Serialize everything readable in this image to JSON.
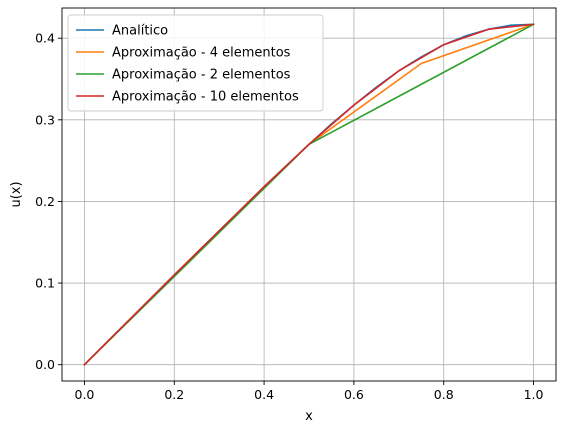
{
  "chart_data": {
    "type": "line",
    "xlabel": "x",
    "ylabel": "u(x)",
    "xlim": [
      -0.05,
      1.05
    ],
    "ylim": [
      -0.02,
      0.437
    ],
    "grid": true,
    "legend_placement": "top-left",
    "xticks": [
      0.0,
      0.2,
      0.4,
      0.6,
      0.8,
      1.0
    ],
    "xtick_labels": [
      "0.0",
      "0.2",
      "0.4",
      "0.6",
      "0.8",
      "1.0"
    ],
    "yticks": [
      0.0,
      0.1,
      0.2,
      0.3,
      0.4
    ],
    "ytick_labels": [
      "0.0",
      "0.1",
      "0.2",
      "0.3",
      "0.4"
    ],
    "series": [
      {
        "name": "Analítico",
        "color": "#1f77b4",
        "x": [
          0.0,
          0.05,
          0.1,
          0.15,
          0.2,
          0.25,
          0.3,
          0.35,
          0.4,
          0.45,
          0.5,
          0.55,
          0.6,
          0.65,
          0.7,
          0.75,
          0.8,
          0.85,
          0.9,
          0.95,
          1.0
        ],
        "y": [
          0.0,
          0.0275,
          0.055,
          0.0825,
          0.11,
          0.137,
          0.164,
          0.191,
          0.218,
          0.244,
          0.27,
          0.295,
          0.318,
          0.34,
          0.36,
          0.377,
          0.392,
          0.403,
          0.411,
          0.416,
          0.417
        ]
      },
      {
        "name": "Aproximação - 4 elementos",
        "color": "#ff7f0e",
        "x": [
          0.0,
          0.25,
          0.5,
          0.75,
          1.0
        ],
        "y": [
          0.0,
          0.137,
          0.27,
          0.369,
          0.417
        ]
      },
      {
        "name": "Aproximação - 2 elementos",
        "color": "#2ca02c",
        "x": [
          0.0,
          0.5,
          1.0
        ],
        "y": [
          0.0,
          0.27,
          0.417
        ]
      },
      {
        "name": "Aproximação - 10 elementos",
        "color": "#d62728",
        "x": [
          0.0,
          0.1,
          0.2,
          0.3,
          0.4,
          0.5,
          0.6,
          0.7,
          0.8,
          0.9,
          1.0
        ],
        "y": [
          0.0,
          0.055,
          0.11,
          0.164,
          0.218,
          0.27,
          0.318,
          0.36,
          0.392,
          0.411,
          0.417
        ]
      }
    ]
  }
}
